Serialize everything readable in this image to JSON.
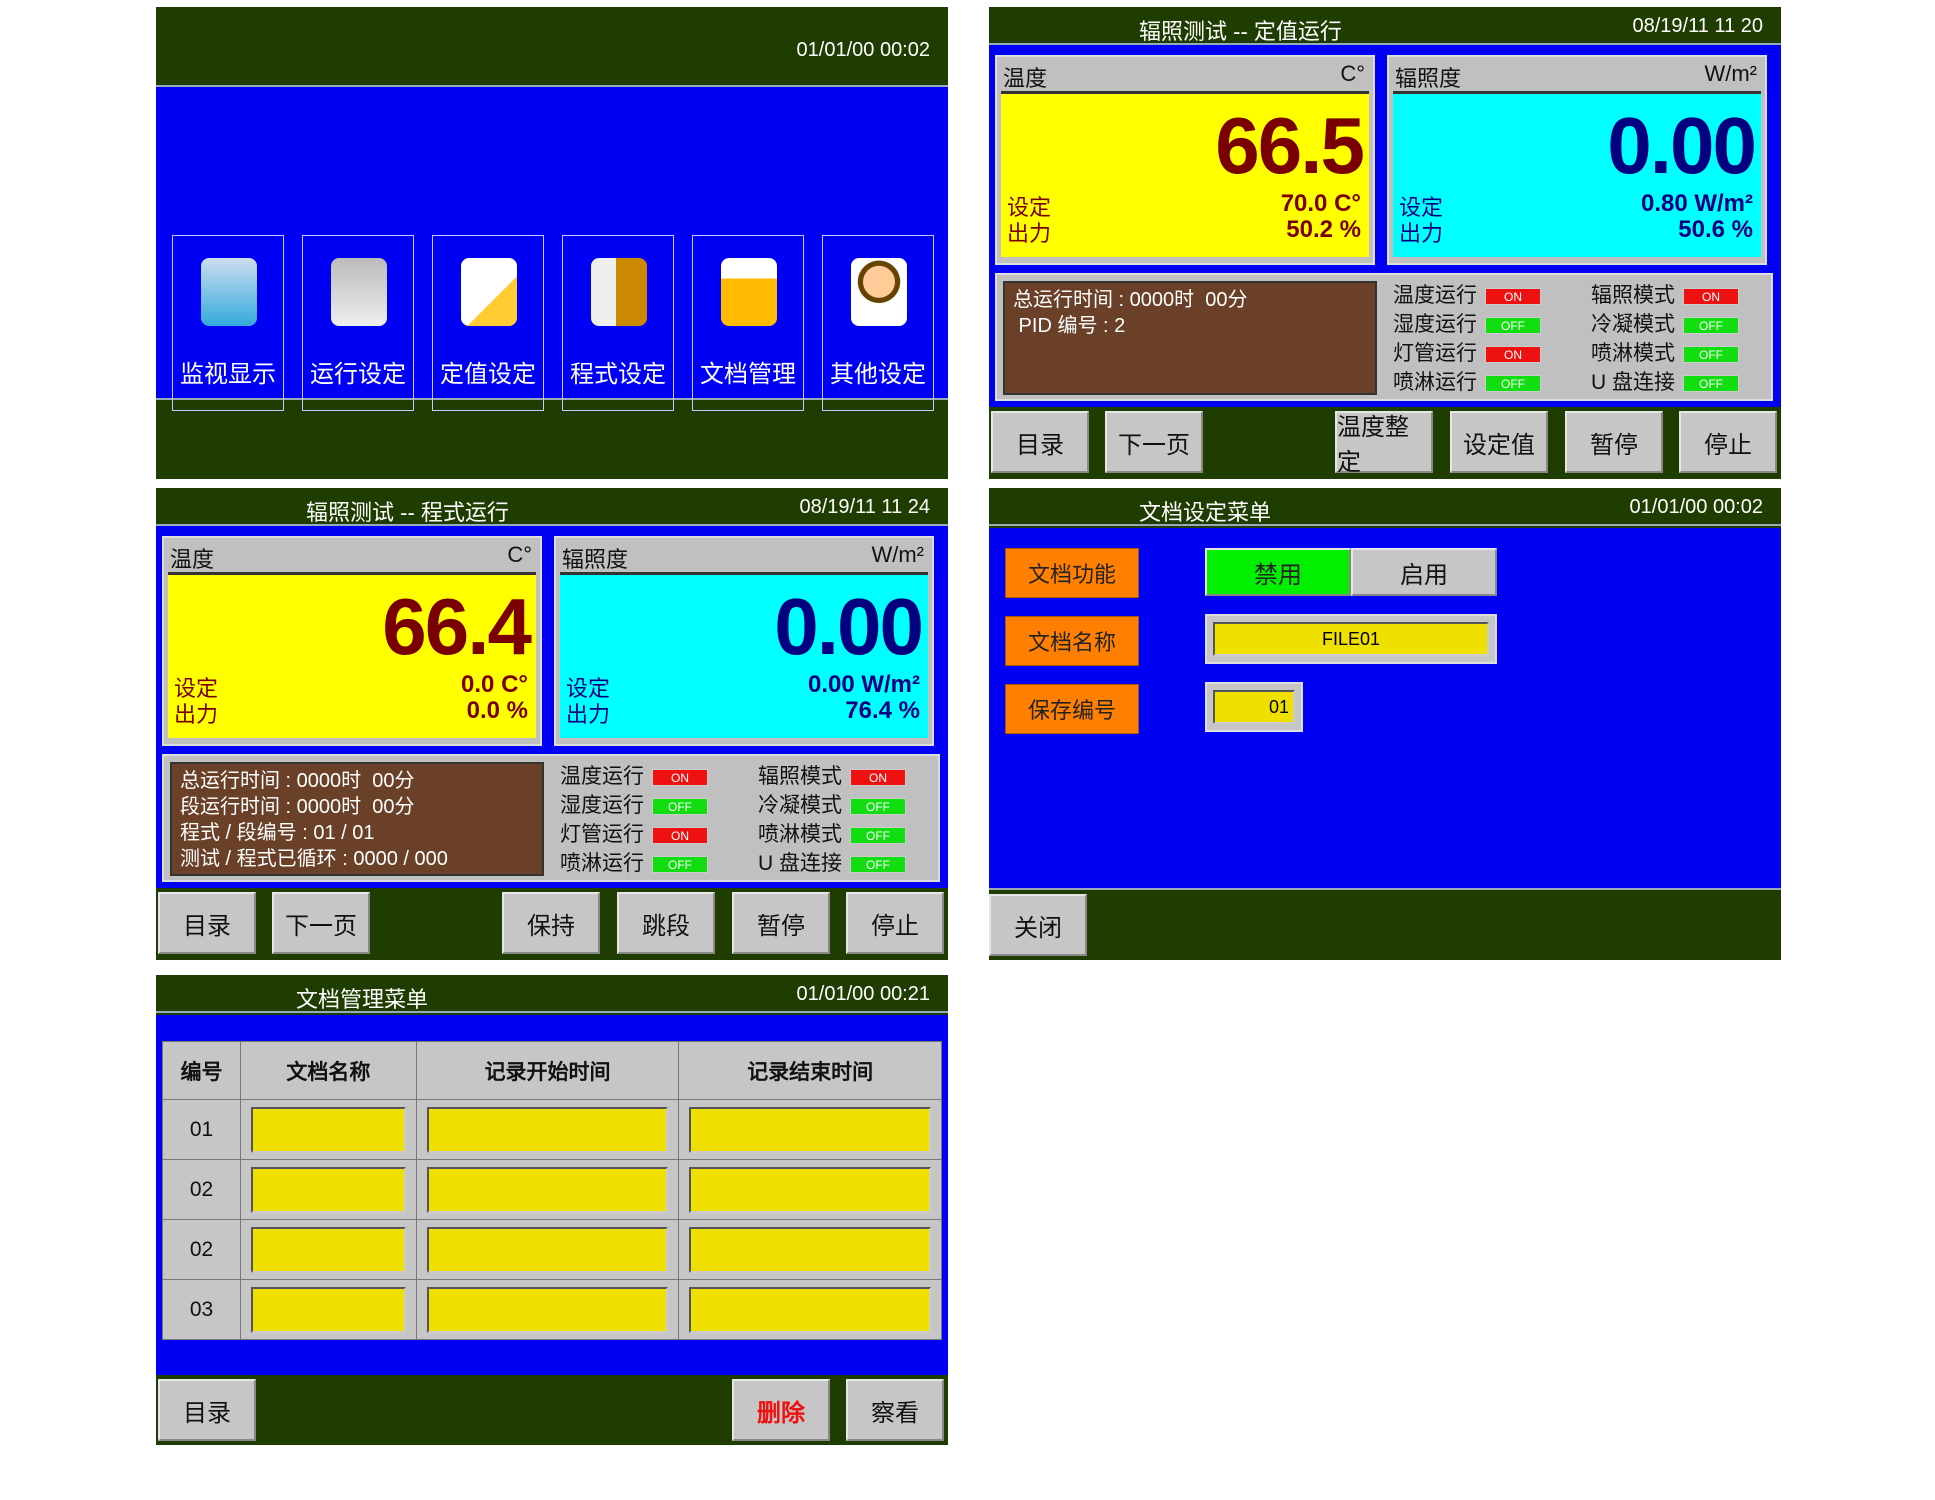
{
  "colors": {
    "header": "#1f3d00",
    "body": "#0000f5",
    "temp_bg": "#ffff00",
    "temp_text": "#7a0000",
    "irr_bg": "#00ffff",
    "irr_text": "#000080",
    "on": "#ee1111",
    "off": "#11dd11",
    "label_orange": "#ff8000",
    "field_yellow": "#f0e000"
  },
  "main_menu": {
    "datetime": "01/01/00 00:02",
    "tiles": [
      {
        "label": "监视显示",
        "icon": "monitor-icon"
      },
      {
        "label": "运行设定",
        "icon": "windows-icon"
      },
      {
        "label": "定值设定",
        "icon": "pencil-document-icon"
      },
      {
        "label": "程式设定",
        "icon": "clipboard-icon"
      },
      {
        "label": "文档管理",
        "icon": "folder-icon"
      },
      {
        "label": "其他设定",
        "icon": "user-icon"
      }
    ]
  },
  "fixed_run": {
    "title": "辐照测试 -- 定值运行",
    "datetime": "08/19/11 11 20",
    "temp": {
      "label": "温度",
      "unit": "C°",
      "value": "66.5",
      "set_label": "设定",
      "set_value": "70.0 C°",
      "out_label": "出力",
      "out_value": "50.2 %"
    },
    "irr": {
      "label": "辐照度",
      "unit": "W/m²",
      "value": "0.00",
      "set_label": "设定",
      "set_value": "0.80 W/m²",
      "out_label": "出力",
      "out_value": "50.6 %"
    },
    "info": [
      "总运行时间 : 0000时  00分",
      " PID 编号 : 2"
    ],
    "indicators": [
      {
        "label": "温度运行",
        "state": "ON"
      },
      {
        "label": "湿度运行",
        "state": "OFF"
      },
      {
        "label": "灯管运行",
        "state": "ON"
      },
      {
        "label": "喷淋运行",
        "state": "OFF"
      },
      {
        "label": "辐照模式",
        "state": "ON"
      },
      {
        "label": "冷凝模式",
        "state": "OFF"
      },
      {
        "label": "喷淋模式",
        "state": "OFF"
      },
      {
        "label": "U 盘连接",
        "state": "OFF"
      }
    ],
    "buttons": [
      "目录",
      "下一页",
      "温度整定",
      "设定值",
      "暂停",
      "停止"
    ]
  },
  "program_run": {
    "title": "辐照测试 -- 程式运行",
    "datetime": "08/19/11 11 24",
    "temp": {
      "label": "温度",
      "unit": "C°",
      "value": "66.4",
      "set_label": "设定",
      "set_value": "0.0 C°",
      "out_label": "出力",
      "out_value": "0.0 %"
    },
    "irr": {
      "label": "辐照度",
      "unit": "W/m²",
      "value": "0.00",
      "set_label": "设定",
      "set_value": "0.00 W/m²",
      "out_label": "出力",
      "out_value": "76.4 %"
    },
    "info": [
      "总运行时间 : 0000时  00分",
      "段运行时间 : 0000时  00分",
      "程式 / 段编号 : 01 / 01",
      "测试 / 程式已循环 : 0000 / 000"
    ],
    "indicators": [
      {
        "label": "温度运行",
        "state": "ON"
      },
      {
        "label": "湿度运行",
        "state": "OFF"
      },
      {
        "label": "灯管运行",
        "state": "ON"
      },
      {
        "label": "喷淋运行",
        "state": "OFF"
      },
      {
        "label": "辐照模式",
        "state": "ON"
      },
      {
        "label": "冷凝模式",
        "state": "OFF"
      },
      {
        "label": "喷淋模式",
        "state": "OFF"
      },
      {
        "label": "U 盘连接",
        "state": "OFF"
      }
    ],
    "buttons": [
      "目录",
      "下一页",
      "保持",
      "跳段",
      "暂停",
      "停止"
    ]
  },
  "file_settings": {
    "title": "文档设定菜单",
    "datetime": "01/01/00 00:02",
    "function_label": "文档功能",
    "disable": "禁用",
    "enable": "启用",
    "selected": "禁用",
    "name_label": "文档名称",
    "name_value": "FILE01",
    "save_label": "保存编号",
    "save_value": "01",
    "close": "关闭"
  },
  "file_manager": {
    "title": "文档管理菜单",
    "datetime": "01/01/00 00:21",
    "columns": [
      "编号",
      "文档名称",
      "记录开始时间",
      "记录结束时间"
    ],
    "rows": [
      {
        "no": "01"
      },
      {
        "no": "02"
      },
      {
        "no": "02"
      },
      {
        "no": "03"
      }
    ],
    "buttons": {
      "menu": "目录",
      "delete": "删除",
      "view": "察看"
    }
  }
}
